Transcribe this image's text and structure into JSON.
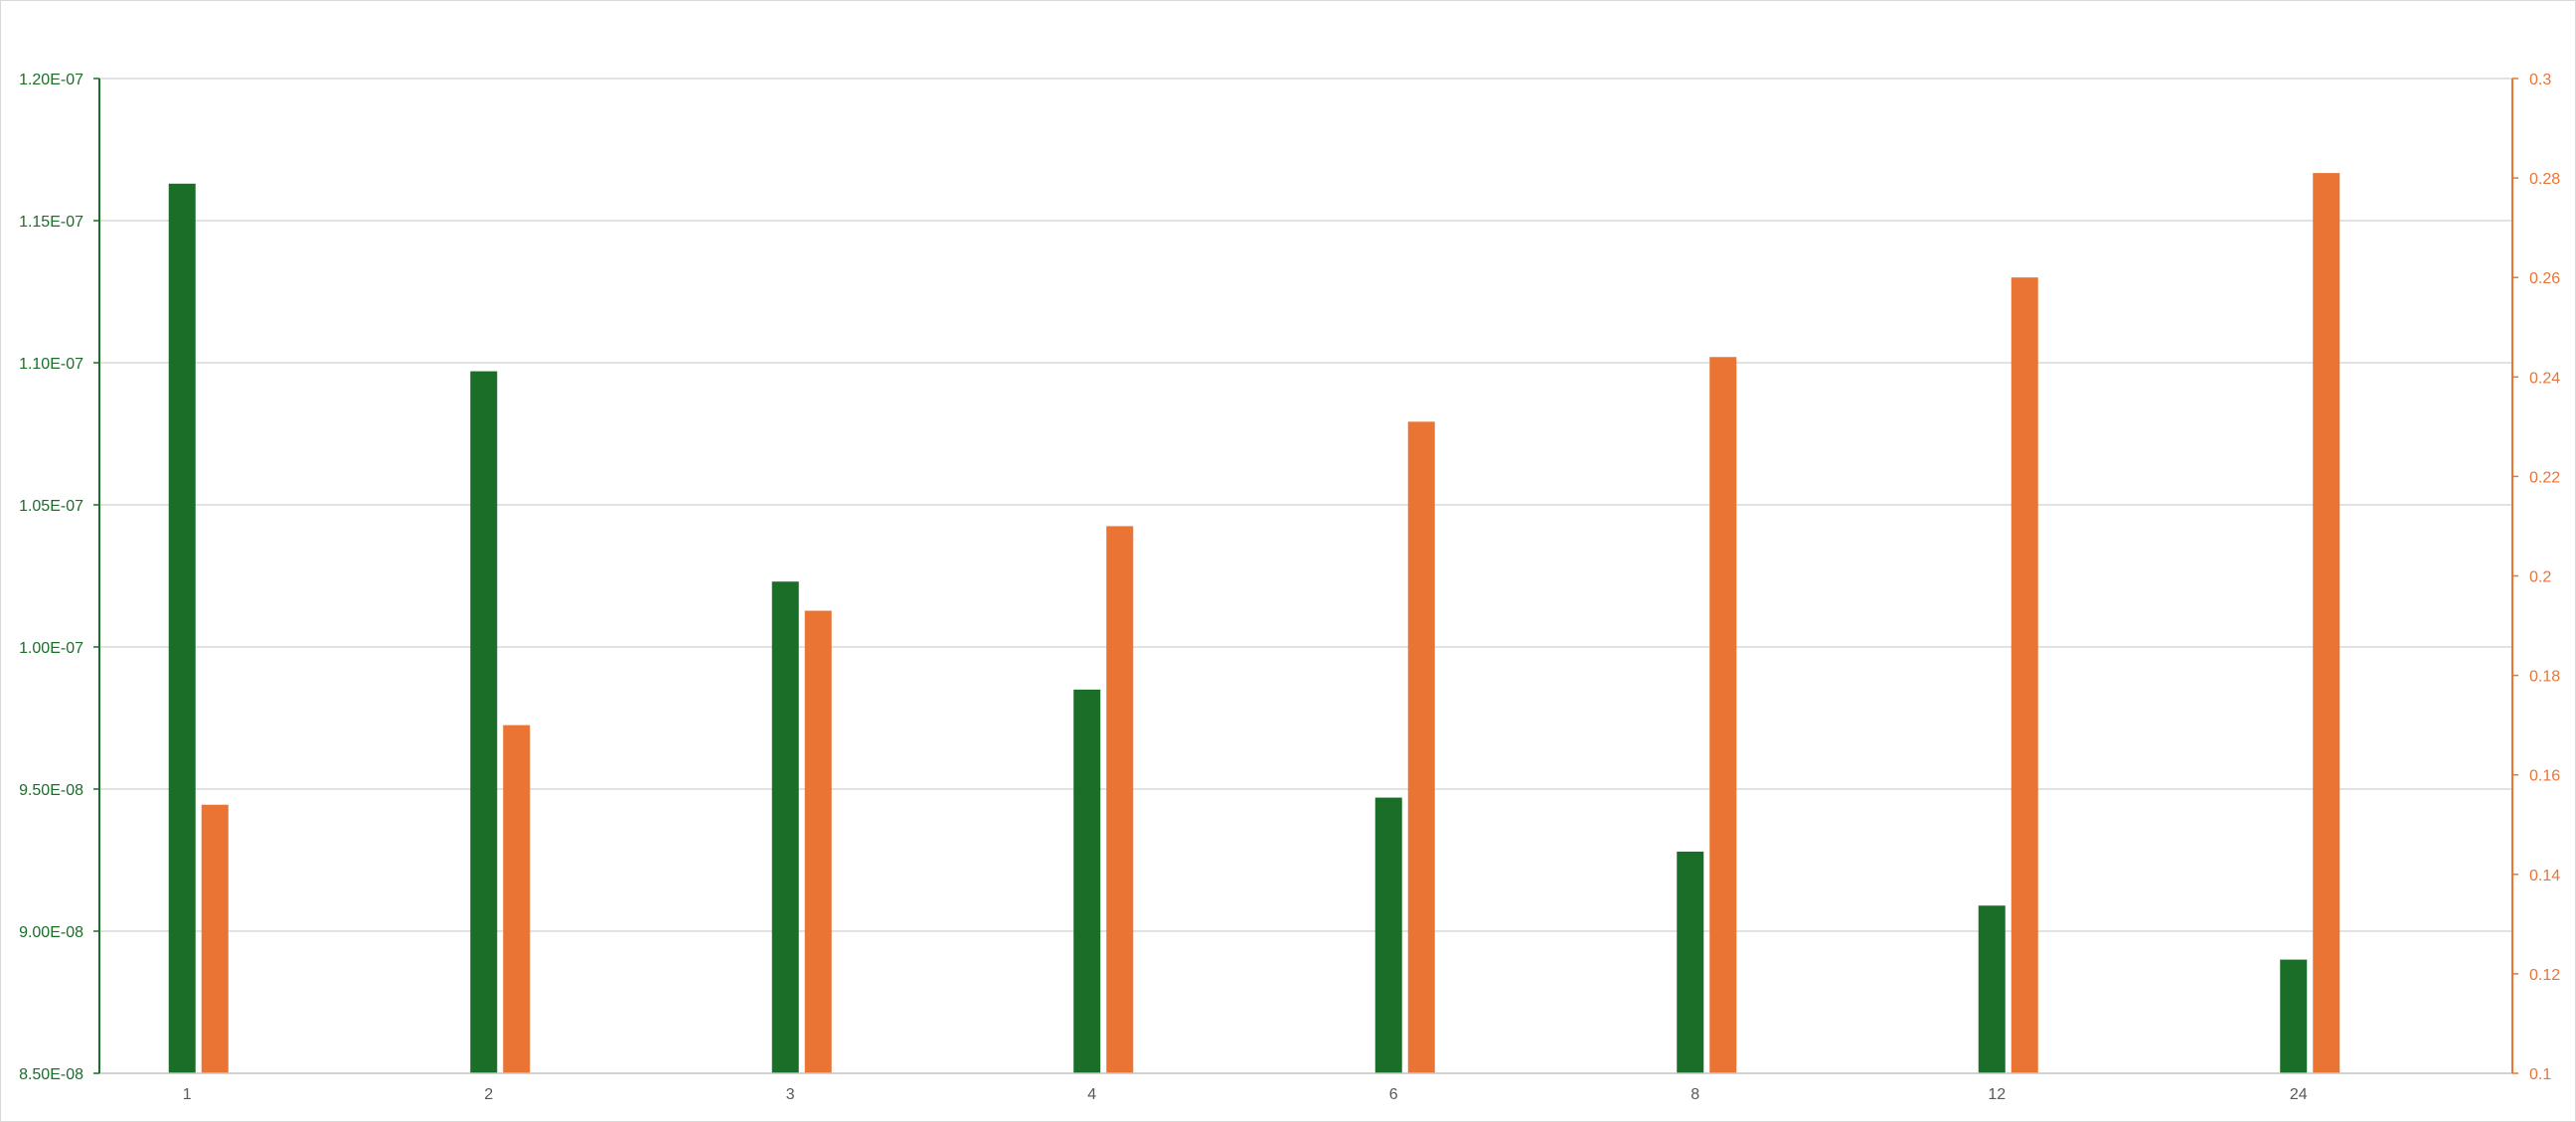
{
  "chart_data": {
    "type": "bar",
    "categories": [
      "1",
      "2",
      "3",
      "4",
      "6",
      "8",
      "12",
      "24"
    ],
    "series": [
      {
        "axis": "left",
        "color": "#1b6e28",
        "values": [
          1.163e-07,
          1.097e-07,
          1.023e-07,
          9.85e-08,
          9.47e-08,
          9.28e-08,
          9.09e-08,
          8.9e-08
        ]
      },
      {
        "axis": "right",
        "color": "#e97434",
        "values": [
          0.154,
          0.17,
          0.193,
          0.21,
          0.231,
          0.244,
          0.26,
          0.281
        ]
      }
    ],
    "y_left": {
      "ylim": [
        8.5e-08,
        1.2e-07
      ],
      "ticks": [
        "8.50E-08",
        "9.00E-08",
        "9.50E-08",
        "1.00E-07",
        "1.05E-07",
        "1.10E-07",
        "1.15E-07",
        "1.20E-07"
      ],
      "color": "#1b6e28"
    },
    "y_right": {
      "ylim": [
        0.1,
        0.3
      ],
      "ticks": [
        "0.1",
        "0.12",
        "0.14",
        "0.16",
        "0.18",
        "0.2",
        "0.22",
        "0.24",
        "0.26",
        "0.28",
        "0.3"
      ],
      "color": "#e97434"
    },
    "grid": true,
    "grid_color": "#d0d0d0",
    "axis_color": "#c8c8c8",
    "xtick_color": "#595959",
    "title": "",
    "xlabel": "",
    "ylabel": ""
  }
}
